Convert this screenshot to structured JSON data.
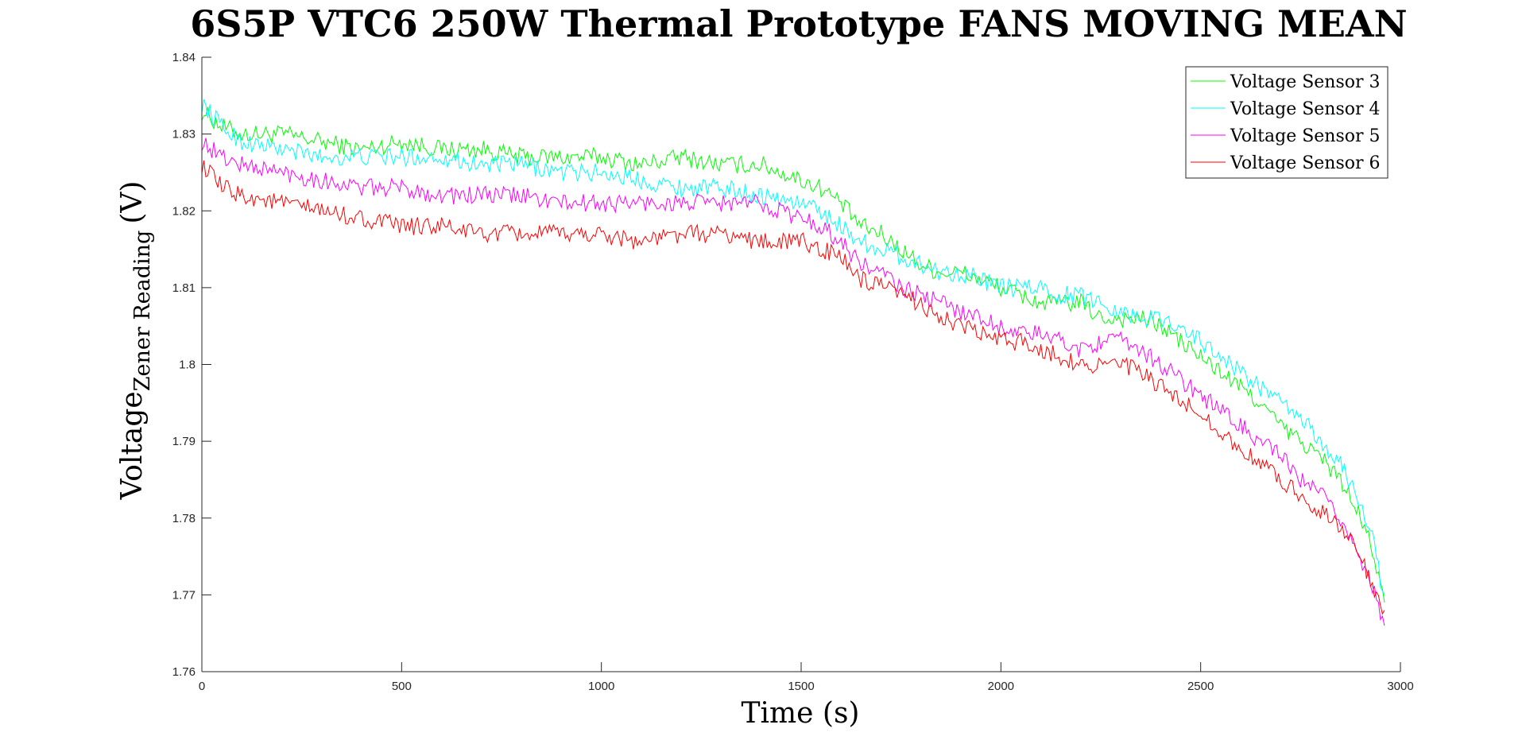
{
  "chart_data": {
    "type": "line",
    "title": "6S5P VTC6 250W Thermal Prototype FANS MOVING MEAN",
    "xlabel": "Time (s)",
    "ylabel": {
      "main": "Voltage",
      "subscript": "Zener Reading",
      "unit": "(V)"
    },
    "xlim": [
      0,
      3000
    ],
    "ylim": [
      1.76,
      1.84
    ],
    "xticks": [
      "0",
      "500",
      "1000",
      "1500",
      "2000",
      "2500",
      "3000"
    ],
    "yticks": [
      "1.76",
      "1.77",
      "1.78",
      "1.79",
      "1.8",
      "1.81",
      "1.82",
      "1.83",
      "1.84"
    ],
    "grid": false,
    "legend_position": "top-right",
    "series": [
      {
        "name": "Voltage Sensor 3",
        "color": "#00ff00",
        "x": [
          0,
          50,
          100,
          200,
          300,
          400,
          500,
          600,
          700,
          800,
          900,
          1000,
          1100,
          1200,
          1300,
          1400,
          1500,
          1550,
          1600,
          1650,
          1700,
          1750,
          1800,
          1850,
          1900,
          1950,
          2000,
          2050,
          2100,
          2150,
          2200,
          2250,
          2300,
          2350,
          2400,
          2450,
          2500,
          2550,
          2600,
          2650,
          2700,
          2750,
          2800,
          2850,
          2900,
          2930,
          2950,
          2960
        ],
        "y": [
          1.833,
          1.831,
          1.83,
          1.83,
          1.829,
          1.828,
          1.829,
          1.828,
          1.828,
          1.827,
          1.827,
          1.827,
          1.826,
          1.827,
          1.826,
          1.826,
          1.824,
          1.823,
          1.821,
          1.818,
          1.817,
          1.815,
          1.813,
          1.812,
          1.812,
          1.811,
          1.81,
          1.809,
          1.808,
          1.808,
          1.808,
          1.806,
          1.806,
          1.806,
          1.805,
          1.803,
          1.801,
          1.799,
          1.797,
          1.795,
          1.792,
          1.79,
          1.788,
          1.785,
          1.78,
          1.776,
          1.771,
          1.769
        ]
      },
      {
        "name": "Voltage Sensor 4",
        "color": "#00ffff",
        "x": [
          0,
          50,
          100,
          200,
          300,
          400,
          500,
          600,
          700,
          800,
          900,
          1000,
          1100,
          1200,
          1300,
          1400,
          1500,
          1550,
          1600,
          1650,
          1700,
          1750,
          1800,
          1850,
          1900,
          1950,
          2000,
          2050,
          2100,
          2150,
          2200,
          2250,
          2300,
          2350,
          2400,
          2450,
          2500,
          2550,
          2600,
          2650,
          2700,
          2750,
          2800,
          2850,
          2900,
          2930,
          2950,
          2960
        ],
        "y": [
          1.834,
          1.831,
          1.829,
          1.828,
          1.827,
          1.827,
          1.827,
          1.827,
          1.826,
          1.826,
          1.825,
          1.825,
          1.824,
          1.823,
          1.823,
          1.822,
          1.821,
          1.82,
          1.818,
          1.816,
          1.815,
          1.814,
          1.813,
          1.812,
          1.812,
          1.811,
          1.81,
          1.81,
          1.81,
          1.809,
          1.809,
          1.808,
          1.807,
          1.806,
          1.806,
          1.805,
          1.803,
          1.801,
          1.799,
          1.797,
          1.795,
          1.793,
          1.79,
          1.787,
          1.782,
          1.778,
          1.772,
          1.77
        ]
      },
      {
        "name": "Voltage Sensor 5",
        "color": "#ff00ff",
        "x": [
          0,
          50,
          100,
          200,
          300,
          400,
          500,
          600,
          700,
          800,
          900,
          1000,
          1100,
          1200,
          1300,
          1400,
          1500,
          1550,
          1600,
          1650,
          1700,
          1750,
          1800,
          1850,
          1900,
          1950,
          2000,
          2050,
          2100,
          2150,
          2200,
          2250,
          2300,
          2350,
          2400,
          2450,
          2500,
          2550,
          2600,
          2650,
          2700,
          2750,
          2800,
          2850,
          2900,
          2930,
          2950,
          2960
        ],
        "y": [
          1.829,
          1.827,
          1.826,
          1.825,
          1.824,
          1.823,
          1.823,
          1.822,
          1.822,
          1.822,
          1.821,
          1.821,
          1.821,
          1.821,
          1.821,
          1.821,
          1.819,
          1.818,
          1.816,
          1.813,
          1.812,
          1.81,
          1.809,
          1.808,
          1.807,
          1.806,
          1.805,
          1.804,
          1.804,
          1.803,
          1.802,
          1.803,
          1.803,
          1.802,
          1.8,
          1.798,
          1.796,
          1.794,
          1.792,
          1.79,
          1.788,
          1.785,
          1.783,
          1.78,
          1.775,
          1.771,
          1.767,
          1.766
        ]
      },
      {
        "name": "Voltage Sensor 6",
        "color": "#ff0000",
        "x": [
          0,
          50,
          100,
          200,
          300,
          400,
          500,
          600,
          700,
          800,
          900,
          1000,
          1100,
          1200,
          1300,
          1400,
          1500,
          1550,
          1600,
          1650,
          1700,
          1750,
          1800,
          1850,
          1900,
          1950,
          2000,
          2050,
          2100,
          2150,
          2200,
          2250,
          2300,
          2350,
          2400,
          2450,
          2500,
          2550,
          2600,
          2650,
          2700,
          2750,
          2800,
          2850,
          2900,
          2930,
          2950,
          2960
        ],
        "y": [
          1.826,
          1.823,
          1.822,
          1.821,
          1.82,
          1.819,
          1.818,
          1.818,
          1.817,
          1.817,
          1.817,
          1.817,
          1.816,
          1.817,
          1.817,
          1.816,
          1.816,
          1.815,
          1.814,
          1.811,
          1.81,
          1.809,
          1.808,
          1.806,
          1.805,
          1.804,
          1.803,
          1.803,
          1.802,
          1.801,
          1.8,
          1.8,
          1.8,
          1.799,
          1.797,
          1.795,
          1.794,
          1.791,
          1.789,
          1.787,
          1.785,
          1.783,
          1.781,
          1.779,
          1.775,
          1.771,
          1.768,
          1.768
        ]
      }
    ]
  }
}
